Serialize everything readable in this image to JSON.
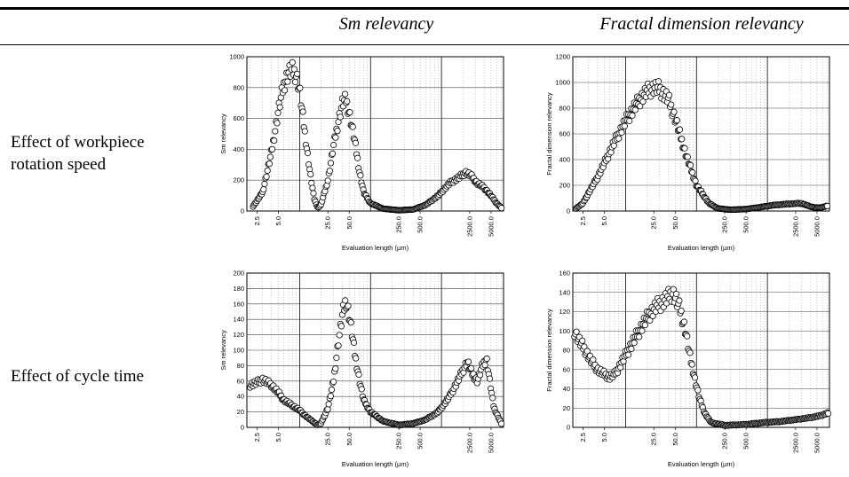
{
  "table": {
    "col_headers": [
      "Sm relevancy",
      "Fractal dimension relevancy"
    ],
    "row_labels": [
      [
        "Effect of workpiece",
        "rotation speed"
      ],
      [
        "Effect of cycle time"
      ]
    ]
  },
  "chart_data": [
    {
      "type": "scatter",
      "xscale": "log",
      "xlabel": "Evaluation length (μm)",
      "ylabel": "Sm relevancy",
      "ylim": [
        0,
        1000
      ],
      "yticks": [
        0,
        200,
        400,
        600,
        800,
        1000
      ],
      "xlim": [
        1.8,
        7500
      ],
      "xtick_labels": [
        "2.5",
        "5.0",
        "25.0",
        "50.0",
        "250.0",
        "500.0",
        "2500.0",
        "5000.0"
      ],
      "xticks": [
        2.5,
        5,
        25,
        50,
        250,
        500,
        2500,
        5000
      ],
      "grid": true,
      "series": [
        {
          "curve": [
            [
              2.2,
              30
            ],
            [
              3,
              120
            ],
            [
              4,
              380
            ],
            [
              5,
              650
            ],
            [
              6,
              820
            ],
            [
              7,
              900
            ],
            [
              8,
              910
            ],
            [
              9,
              880
            ],
            [
              10,
              780
            ],
            [
              12,
              480
            ],
            [
              14,
              250
            ],
            [
              16,
              80
            ],
            [
              18,
              20
            ],
            [
              20,
              40
            ],
            [
              25,
              200
            ],
            [
              30,
              420
            ],
            [
              35,
              580
            ],
            [
              40,
              700
            ],
            [
              45,
              720
            ],
            [
              50,
              640
            ],
            [
              60,
              450
            ],
            [
              70,
              250
            ],
            [
              80,
              120
            ],
            [
              100,
              50
            ],
            [
              150,
              15
            ],
            [
              250,
              5
            ],
            [
              400,
              10
            ],
            [
              600,
              40
            ],
            [
              900,
              100
            ],
            [
              1300,
              180
            ],
            [
              1800,
              220
            ],
            [
              2200,
              250
            ],
            [
              2600,
              230
            ],
            [
              3200,
              180
            ],
            [
              4000,
              150
            ],
            [
              5000,
              100
            ],
            [
              6000,
              50
            ],
            [
              7000,
              20
            ]
          ]
        }
      ]
    },
    {
      "type": "scatter",
      "xscale": "log",
      "xlabel": "Evaluation length (μm)",
      "ylabel": "Fractal dimension relevancy",
      "ylim": [
        0,
        1200
      ],
      "yticks": [
        0,
        200,
        400,
        600,
        800,
        1000,
        1200
      ],
      "xlim": [
        1.8,
        7500
      ],
      "xtick_labels": [
        "2.5",
        "5.0",
        "25.0",
        "50.0",
        "250.0",
        "500.0",
        "2500.0",
        "5000.0"
      ],
      "xticks": [
        2.5,
        5,
        25,
        50,
        250,
        500,
        2500,
        5000
      ],
      "grid": true,
      "series": [
        {
          "curve": [
            [
              2,
              20
            ],
            [
              2.5,
              60
            ],
            [
              3,
              140
            ],
            [
              4,
              260
            ],
            [
              5,
              370
            ],
            [
              7,
              540
            ],
            [
              10,
              700
            ],
            [
              15,
              850
            ],
            [
              20,
              930
            ],
            [
              25,
              960
            ],
            [
              30,
              950
            ],
            [
              40,
              870
            ],
            [
              50,
              720
            ],
            [
              70,
              450
            ],
            [
              100,
              200
            ],
            [
              150,
              60
            ],
            [
              200,
              20
            ],
            [
              300,
              10
            ],
            [
              500,
              15
            ],
            [
              800,
              30
            ],
            [
              1200,
              45
            ],
            [
              2000,
              55
            ],
            [
              3000,
              60
            ],
            [
              4000,
              35
            ],
            [
              5000,
              25
            ],
            [
              6000,
              30
            ],
            [
              7000,
              40
            ]
          ]
        }
      ]
    },
    {
      "type": "scatter",
      "xscale": "log",
      "xlabel": "Evaluation length (μm)",
      "ylabel": "Sm relevancy",
      "ylim": [
        0,
        200
      ],
      "yticks": [
        0,
        20,
        40,
        60,
        80,
        100,
        120,
        140,
        160,
        180,
        200
      ],
      "xlim": [
        1.8,
        7500
      ],
      "xtick_labels": [
        "2.5",
        "5.0",
        "25.0",
        "50.0",
        "250.0",
        "500.0",
        "2500.0",
        "5000.0"
      ],
      "xticks": [
        2.5,
        5,
        25,
        50,
        250,
        500,
        2500,
        5000
      ],
      "grid": true,
      "series": [
        {
          "curve": [
            [
              2,
              55
            ],
            [
              2.5,
              58
            ],
            [
              3,
              62
            ],
            [
              4,
              55
            ],
            [
              5,
              45
            ],
            [
              6,
              35
            ],
            [
              8,
              28
            ],
            [
              10,
              22
            ],
            [
              12,
              15
            ],
            [
              15,
              8
            ],
            [
              18,
              3
            ],
            [
              20,
              5
            ],
            [
              25,
              25
            ],
            [
              30,
              60
            ],
            [
              35,
              110
            ],
            [
              40,
              145
            ],
            [
              45,
              165
            ],
            [
              50,
              145
            ],
            [
              55,
              120
            ],
            [
              60,
              95
            ],
            [
              70,
              60
            ],
            [
              80,
              35
            ],
            [
              100,
              20
            ],
            [
              150,
              8
            ],
            [
              250,
              3
            ],
            [
              400,
              5
            ],
            [
              600,
              10
            ],
            [
              900,
              20
            ],
            [
              1300,
              40
            ],
            [
              1800,
              65
            ],
            [
              2300,
              85
            ],
            [
              2700,
              70
            ],
            [
              3200,
              60
            ],
            [
              3800,
              80
            ],
            [
              4300,
              90
            ],
            [
              4800,
              60
            ],
            [
              5500,
              25
            ],
            [
              7000,
              5
            ]
          ]
        }
      ]
    },
    {
      "type": "scatter",
      "xscale": "log",
      "xlabel": "Evaluation length (μm)",
      "ylabel": "Fractal dimension relevancy",
      "ylim": [
        0,
        160
      ],
      "yticks": [
        0,
        20,
        40,
        60,
        80,
        100,
        120,
        140,
        160
      ],
      "xlim": [
        1.8,
        7500
      ],
      "xtick_labels": [
        "2.5",
        "5.0",
        "25.0",
        "50.0",
        "250.0",
        "500.0",
        "2500.0",
        "5000.0"
      ],
      "xticks": [
        2.5,
        5,
        25,
        50,
        250,
        500,
        2500,
        5000
      ],
      "grid": true,
      "series": [
        {
          "curve": [
            [
              1.9,
              100
            ],
            [
              2.2,
              90
            ],
            [
              2.7,
              80
            ],
            [
              3.2,
              70
            ],
            [
              4,
              60
            ],
            [
              5,
              55
            ],
            [
              6,
              52
            ],
            [
              7,
              55
            ],
            [
              8,
              62
            ],
            [
              10,
              75
            ],
            [
              13,
              90
            ],
            [
              17,
              105
            ],
            [
              22,
              118
            ],
            [
              27,
              125
            ],
            [
              33,
              130
            ],
            [
              40,
              135
            ],
            [
              46,
              140
            ],
            [
              52,
              132
            ],
            [
              60,
              120
            ],
            [
              70,
              100
            ],
            [
              80,
              75
            ],
            [
              95,
              50
            ],
            [
              110,
              30
            ],
            [
              130,
              15
            ],
            [
              160,
              5
            ],
            [
              250,
              2
            ],
            [
              500,
              3
            ],
            [
              900,
              5
            ],
            [
              1500,
              6
            ],
            [
              2500,
              8
            ],
            [
              4000,
              10
            ],
            [
              5500,
              12
            ],
            [
              7200,
              15
            ]
          ]
        }
      ]
    }
  ]
}
